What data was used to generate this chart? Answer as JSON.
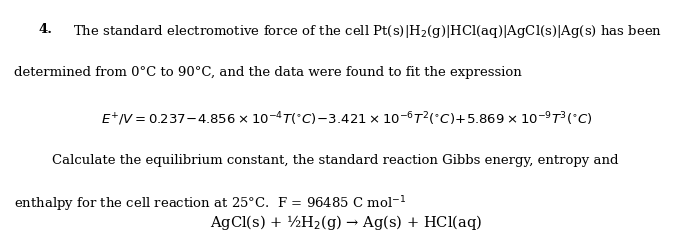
{
  "background_color": "#ffffff",
  "fig_width": 6.93,
  "fig_height": 2.34,
  "dpi": 100,
  "text_color": "#000000",
  "font_family": "DejaVu Serif",
  "font_size": 9.5,
  "font_size_eq": 9.5,
  "font_size_rxn": 10.5,
  "line1_bold": "4.",
  "line1_rest": "  The standard electromotive force of the cell Pt(s)|H$_2$(g)|HCl(aq)|AgCl(s)|Ag(s) has been",
  "line2": "determined from 0°C to 90°C, and the data were found to fit the expression",
  "eq_line": "$E^+\\!/V = 0.237 - 4.856 \\times 10^{-4}T(^{\\circ}C) - 3.421 \\times 10^{-6}T^2(^{\\circ}C) + 5.869 \\times 10^{-9}T^3(^{\\circ}C)$",
  "line4a": "Calculate the equilibrium constant, the standard reaction Gibbs energy, entropy and",
  "line4b": "enthalpy for the cell reaction at 25°C.  F = 96485 C mol$^{-1}$",
  "line5": "AgCl(s) + ½H$_2$(g) → Ag(s) + HCl(aq)"
}
